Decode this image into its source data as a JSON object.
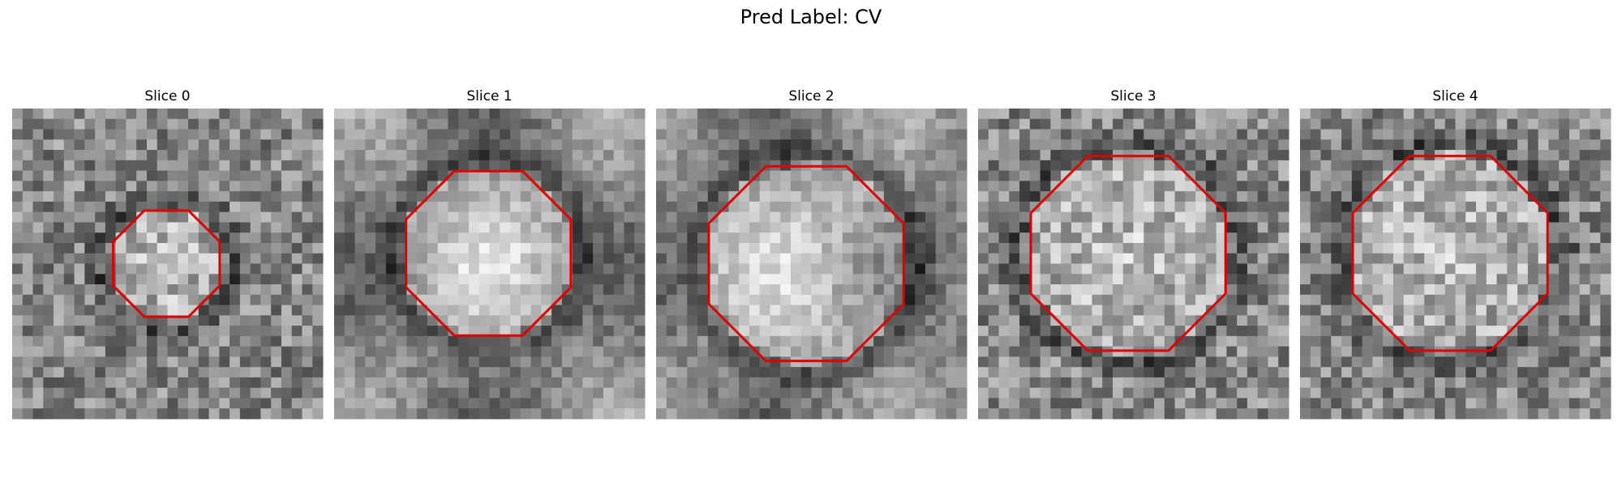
{
  "header": {
    "title": "Pred Label: CV"
  },
  "panels": [
    {
      "title": "Slice 0"
    },
    {
      "title": "Slice 1"
    },
    {
      "title": "Slice 2"
    },
    {
      "title": "Slice 3"
    },
    {
      "title": "Slice 4"
    }
  ]
}
